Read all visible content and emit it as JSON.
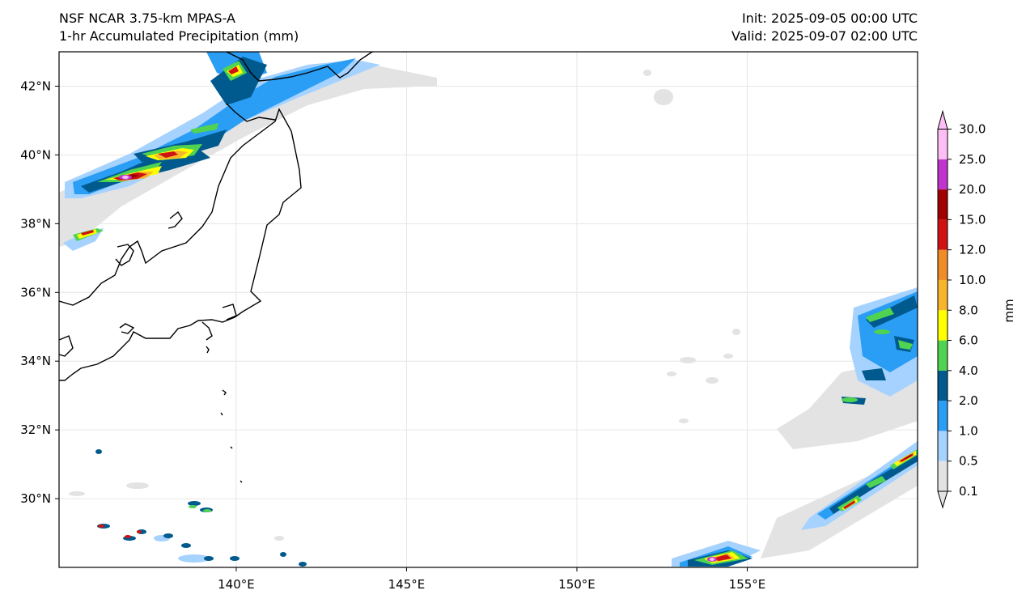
{
  "header": {
    "model": "NSF NCAR 3.75-km MPAS-A",
    "field": "1-hr Accumulated Precipitation (mm)",
    "init": "Init: 2025-09-05 00:00 UTC",
    "valid": "Valid: 2025-09-07 02:00 UTC"
  },
  "map": {
    "lon_range": [
      134.8,
      160.0
    ],
    "lat_range": [
      28.0,
      43.0
    ],
    "lon_ticks": [
      {
        "value": 140,
        "label": "140°E"
      },
      {
        "value": 145,
        "label": "145°E"
      },
      {
        "value": 150,
        "label": "150°E"
      },
      {
        "value": 155,
        "label": "155°E"
      }
    ],
    "lat_ticks": [
      {
        "value": 42,
        "label": "42°N"
      },
      {
        "value": 40,
        "label": "40°N"
      },
      {
        "value": 38,
        "label": "38°N"
      },
      {
        "value": 36,
        "label": "36°N"
      },
      {
        "value": 34,
        "label": "34°N"
      },
      {
        "value": 32,
        "label": "32°N"
      },
      {
        "value": 30,
        "label": "30°N"
      }
    ],
    "gridlines": true
  },
  "colorbar": {
    "unit": "mm",
    "levels": [
      "0.1",
      "0.5",
      "1.0",
      "2.0",
      "4.0",
      "6.0",
      "8.0",
      "10.0",
      "12.0",
      "15.0",
      "20.0",
      "25.0",
      "30.0"
    ],
    "colors": [
      "#e3e3e3",
      "#a6d2ff",
      "#2a9df4",
      "#005a8e",
      "#4fd350",
      "#ffff00",
      "#f7b52c",
      "#f08c26",
      "#cf1212",
      "#a10000",
      "#c033cc",
      "#ffbdf5"
    ],
    "extend": "both"
  }
}
